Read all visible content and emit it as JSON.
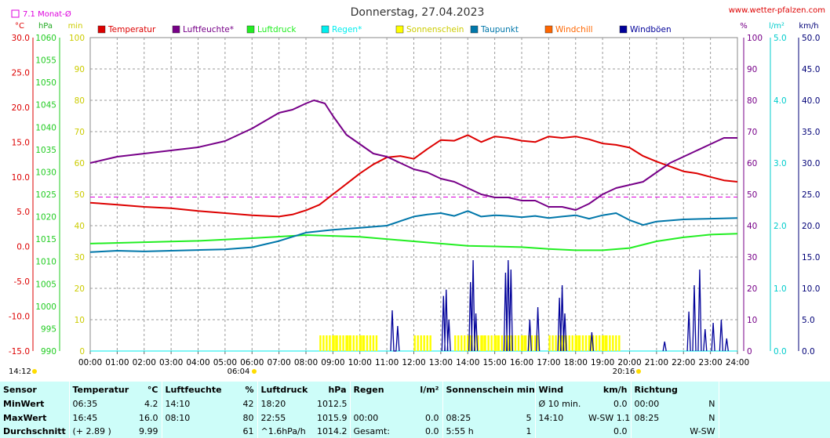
{
  "site": "www.wetter-pfalzen.com",
  "monthly_avg_label": "7.1 Monat-Ø",
  "unit_labels": {
    "temp": "°C",
    "pressure": "hPa",
    "sunshine": "min",
    "humidity": "%",
    "rain": "l/m²",
    "wind": "km/h"
  },
  "colors": {
    "temperature": "#dd0000",
    "humidity": "#770088",
    "pressure": "#22ee22",
    "rain": "#00eeee",
    "sunshine": "#ffff00",
    "dewpoint": "#0077aa",
    "windchill": "#ff6600",
    "gusts": "#000099",
    "monthly_avg": "#dd00dd",
    "axis_temp": "#dd0000",
    "axis_pressure": "#22cc22",
    "axis_sunshine": "#cccc00",
    "axis_humidity": "#770088",
    "axis_rain": "#00cccc",
    "axis_wind": "#000077"
  },
  "markers": {
    "sunrise": "06:04",
    "sunset": "20:16",
    "current": "14:12"
  },
  "chart_data": {
    "type": "line",
    "title": "Donnerstag, 27.04.2023",
    "x_ticks": [
      "00:00",
      "01:00",
      "02:00",
      "03:00",
      "04:00",
      "05:00",
      "06:00",
      "07:00",
      "08:00",
      "09:00",
      "10:00",
      "11:00",
      "12:00",
      "13:00",
      "14:00",
      "15:00",
      "16:00",
      "17:00",
      "18:00",
      "19:00",
      "20:00",
      "21:00",
      "22:00",
      "23:00",
      "24:00"
    ],
    "xlim": [
      0,
      24
    ],
    "axes": {
      "temperature": {
        "unit": "°C",
        "ylim": [
          -15,
          30
        ],
        "ticks": [
          "30.0",
          "25.0",
          "20.0",
          "15.0",
          "10.0",
          "5.0",
          "0.0",
          "-5.0",
          "-10.0",
          "-15.0"
        ]
      },
      "pressure": {
        "unit": "hPa",
        "ylim": [
          990,
          1060
        ],
        "ticks": [
          "1060",
          "1055",
          "1050",
          "1045",
          "1040",
          "1035",
          "1030",
          "1025",
          "1020",
          "1015",
          "1010",
          "1005",
          "1000",
          "995",
          "990"
        ]
      },
      "sunshine": {
        "unit": "min",
        "ylim": [
          0,
          100
        ],
        "ticks": [
          "100",
          "90",
          "80",
          "70",
          "60",
          "50",
          "40",
          "30",
          "20",
          "10",
          "0"
        ]
      },
      "humidity": {
        "unit": "%",
        "ylim": [
          0,
          100
        ],
        "ticks": [
          "100",
          "90",
          "80",
          "70",
          "60",
          "50",
          "40",
          "30",
          "20",
          "10",
          "0"
        ]
      },
      "rain": {
        "unit": "l/m²",
        "ylim": [
          0,
          5
        ],
        "ticks": [
          "5.0",
          "4.0",
          "3.0",
          "2.0",
          "1.0",
          "0.0"
        ]
      },
      "wind": {
        "unit": "km/h",
        "ylim": [
          0,
          50
        ],
        "ticks": [
          "50.0",
          "45.0",
          "40.0",
          "35.0",
          "30.0",
          "25.0",
          "20.0",
          "15.0",
          "10.0",
          "5.0",
          "0.0"
        ]
      }
    },
    "monthly_avg_temperature": 7.1,
    "series": [
      {
        "name": "Temperatur",
        "axis": "temperature",
        "x": [
          0,
          1,
          2,
          3,
          4,
          5,
          6,
          7,
          7.5,
          8,
          8.5,
          9,
          9.5,
          10,
          10.5,
          11,
          11.5,
          12,
          12.5,
          13,
          13.5,
          14,
          14.5,
          15,
          15.5,
          16,
          16.5,
          17,
          17.5,
          18,
          18.5,
          19,
          19.5,
          20,
          20.5,
          21,
          21.5,
          22,
          22.5,
          23,
          23.5,
          24
        ],
        "y": [
          6.3,
          6.0,
          5.7,
          5.5,
          5.1,
          4.8,
          4.5,
          4.3,
          4.6,
          5.2,
          6.0,
          7.5,
          9.0,
          10.5,
          11.8,
          12.8,
          13.0,
          12.6,
          14.0,
          15.3,
          15.2,
          16.0,
          15.0,
          15.8,
          15.6,
          15.2,
          15.0,
          15.8,
          15.6,
          15.8,
          15.4,
          14.8,
          14.6,
          14.2,
          13.0,
          12.2,
          11.5,
          10.8,
          10.5,
          10.0,
          9.5,
          9.3
        ]
      },
      {
        "name": "Luftfeuchte*",
        "axis": "humidity",
        "x": [
          0,
          1,
          2,
          3,
          4,
          5,
          6,
          7,
          7.5,
          8,
          8.3,
          8.7,
          9,
          9.5,
          10,
          10.5,
          11,
          11.5,
          12,
          12.5,
          13,
          13.5,
          14,
          14.5,
          15,
          15.5,
          16,
          16.5,
          17,
          17.5,
          18,
          18.5,
          19,
          19.5,
          20,
          20.5,
          21,
          21.5,
          22,
          22.5,
          23,
          23.5,
          24
        ],
        "y": [
          60,
          62,
          63,
          64,
          65,
          67,
          71,
          76,
          77,
          79,
          80,
          79,
          75,
          69,
          66,
          63,
          62,
          60,
          58,
          57,
          55,
          54,
          52,
          50,
          49,
          49,
          48,
          48,
          46,
          46,
          45,
          47,
          50,
          52,
          53,
          54,
          57,
          60,
          62,
          64,
          66,
          68,
          68
        ]
      },
      {
        "name": "Luftdruck",
        "axis": "pressure",
        "x": [
          0,
          2,
          4,
          6,
          8,
          10,
          12,
          14,
          16,
          17,
          18,
          19,
          20,
          21,
          22,
          23,
          24
        ],
        "y": [
          1014.0,
          1014.3,
          1014.6,
          1015.2,
          1015.9,
          1015.5,
          1014.5,
          1013.5,
          1013.2,
          1012.8,
          1012.5,
          1012.5,
          1013.0,
          1014.5,
          1015.4,
          1016.0,
          1016.2
        ]
      },
      {
        "name": "Regen*",
        "axis": "rain",
        "x": [
          0,
          24
        ],
        "y": [
          0,
          0
        ]
      },
      {
        "name": "Sonnenschein",
        "axis": "sunshine",
        "type": "bar",
        "x": [
          8.5,
          9,
          9.5,
          10,
          12,
          13.5,
          14,
          14.5,
          15,
          15.5,
          16,
          17,
          17.5,
          18,
          18.5,
          19
        ],
        "y": [
          5,
          5,
          5,
          5,
          4,
          5,
          5,
          5,
          5,
          5,
          4,
          5,
          5,
          5,
          5,
          4
        ]
      },
      {
        "name": "Taupunkt",
        "axis": "temperature",
        "x": [
          0,
          1,
          2,
          3,
          4,
          5,
          6,
          7,
          8,
          9,
          10,
          11,
          12,
          12.5,
          13,
          13.5,
          14,
          14.5,
          15,
          15.5,
          16,
          16.5,
          17,
          17.5,
          18,
          18.5,
          19,
          19.5,
          20,
          20.5,
          21,
          22,
          23,
          24
        ],
        "y": [
          -0.8,
          -0.6,
          -0.7,
          -0.6,
          -0.5,
          -0.4,
          -0.1,
          0.8,
          2.0,
          2.4,
          2.7,
          3.0,
          4.3,
          4.6,
          4.8,
          4.4,
          5.1,
          4.3,
          4.5,
          4.4,
          4.2,
          4.4,
          4.1,
          4.3,
          4.5,
          4.0,
          4.5,
          4.8,
          3.8,
          3.1,
          3.6,
          3.9,
          4.0,
          4.1
        ]
      },
      {
        "name": "Windchill",
        "axis": "temperature",
        "x": [],
        "y": []
      },
      {
        "name": "Windböen",
        "axis": "wind",
        "x": [
          11.2,
          11.3,
          11.4,
          13.1,
          13.2,
          13.3,
          14.1,
          14.2,
          14.3,
          15.4,
          15.5,
          15.6,
          16.3,
          16.6,
          17.4,
          17.5,
          17.6,
          18.6,
          21.3,
          22.2,
          22.4,
          22.6,
          22.8,
          23.1,
          23.4,
          23.6
        ],
        "y": [
          6.5,
          0,
          4.0,
          8.8,
          9.8,
          5.0,
          11.0,
          14.5,
          6.0,
          12.5,
          14.5,
          13.0,
          5.0,
          7.0,
          8.5,
          10.5,
          6.0,
          3.0,
          1.5,
          6.3,
          10.5,
          13.0,
          3.5,
          4.5,
          5.0,
          2.0
        ]
      }
    ]
  },
  "table": {
    "headers": {
      "sensor": "Sensor",
      "temp": "Temperatur",
      "temp_unit": "°C",
      "hum": "Luftfeuchte",
      "hum_unit": "%",
      "press": "Luftdruck",
      "press_unit": "hPa",
      "rain": "Regen",
      "rain_unit": "l/m²",
      "sun": "Sonnenschein min",
      "wind": "Wind",
      "wind_unit": "km/h",
      "dir": "Richtung"
    },
    "rows": [
      {
        "label": "MinWert",
        "t_time": "06:35",
        "t_val": "4.2",
        "h_time": "14:10",
        "h_val": "42",
        "p_time": "18:20",
        "p_val": "1012.5",
        "r_time": "",
        "r_val": "",
        "s_time": "",
        "s_val": "",
        "w_time": "Ø 10 min.",
        "w_val": "0.0",
        "d_time": "00:00",
        "d_val": "N"
      },
      {
        "label": "MaxWert",
        "t_time": "16:45",
        "t_val": "16.0",
        "h_time": "08:10",
        "h_val": "80",
        "p_time": "22:55",
        "p_val": "1015.9",
        "r_time": "00:00",
        "r_val": "0.0",
        "s_time": "08:25",
        "s_val": "5",
        "w_time": "14:10",
        "w_val": "W-SW 1.1",
        "d_time": "08:25",
        "d_val": "N"
      },
      {
        "label": "Durchschnitt",
        "t_time": "(+ 2.89 )",
        "t_val": "9.99",
        "h_time": "",
        "h_val": "61",
        "p_time": "^1.6hPa/h",
        "p_val": "1014.2",
        "r_time": "Gesamt:",
        "r_val": "0.0",
        "s_time": "5:55 h",
        "s_val": "1",
        "w_time": "",
        "w_val": "0.0",
        "d_time": "",
        "d_val": "W-SW"
      }
    ]
  }
}
